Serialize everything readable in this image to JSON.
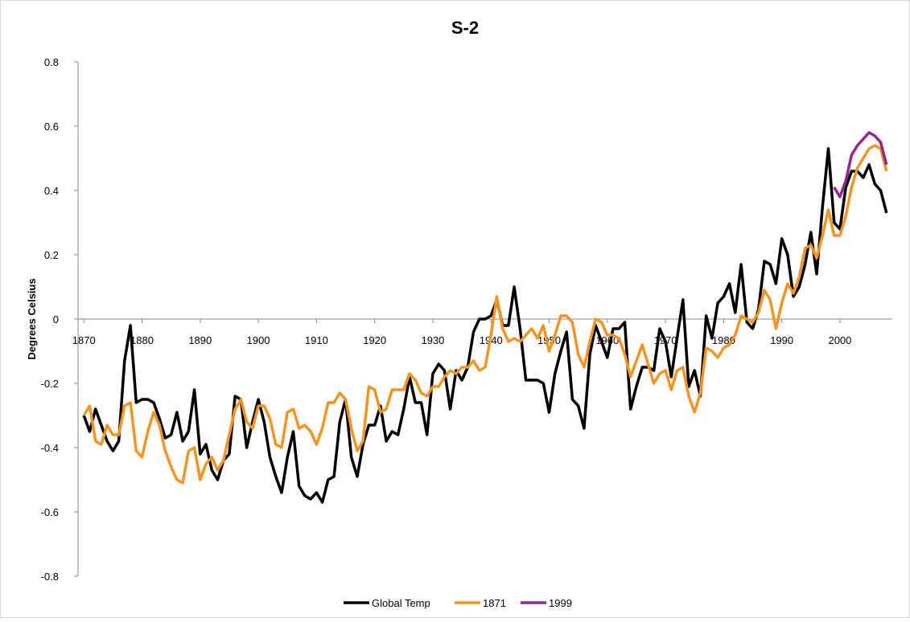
{
  "chart_data": {
    "type": "line",
    "title": "S-2",
    "y_label": "Degrees Celsius",
    "x": [
      1870,
      1871,
      1872,
      1873,
      1874,
      1875,
      1876,
      1877,
      1878,
      1879,
      1880,
      1881,
      1882,
      1883,
      1884,
      1885,
      1886,
      1887,
      1888,
      1889,
      1890,
      1891,
      1892,
      1893,
      1894,
      1895,
      1896,
      1897,
      1898,
      1899,
      1900,
      1901,
      1902,
      1903,
      1904,
      1905,
      1906,
      1907,
      1908,
      1909,
      1910,
      1911,
      1912,
      1913,
      1914,
      1915,
      1916,
      1917,
      1918,
      1919,
      1920,
      1921,
      1922,
      1923,
      1924,
      1925,
      1926,
      1927,
      1928,
      1929,
      1930,
      1931,
      1932,
      1933,
      1934,
      1935,
      1936,
      1937,
      1938,
      1939,
      1940,
      1941,
      1942,
      1943,
      1944,
      1945,
      1946,
      1947,
      1948,
      1949,
      1950,
      1951,
      1952,
      1953,
      1954,
      1955,
      1956,
      1957,
      1958,
      1959,
      1960,
      1961,
      1962,
      1963,
      1964,
      1965,
      1966,
      1967,
      1968,
      1969,
      1970,
      1971,
      1972,
      1973,
      1974,
      1975,
      1976,
      1977,
      1978,
      1979,
      1980,
      1981,
      1982,
      1983,
      1984,
      1985,
      1986,
      1987,
      1988,
      1989,
      1990,
      1991,
      1992,
      1993,
      1994,
      1995,
      1996,
      1997,
      1998,
      1999,
      2000,
      2001,
      2002,
      2003,
      2004,
      2005,
      2006,
      2007,
      2008
    ],
    "series": [
      {
        "name": "Global Temp",
        "color": "#000000",
        "values": [
          -0.3,
          -0.35,
          -0.28,
          -0.33,
          -0.38,
          -0.41,
          -0.38,
          -0.13,
          -0.02,
          -0.26,
          -0.25,
          -0.25,
          -0.26,
          -0.31,
          -0.37,
          -0.36,
          -0.29,
          -0.38,
          -0.35,
          -0.22,
          -0.42,
          -0.39,
          -0.47,
          -0.5,
          -0.44,
          -0.42,
          -0.24,
          -0.25,
          -0.4,
          -0.32,
          -0.25,
          -0.32,
          -0.43,
          -0.49,
          -0.54,
          -0.43,
          -0.35,
          -0.52,
          -0.55,
          -0.56,
          -0.54,
          -0.57,
          -0.5,
          -0.49,
          -0.32,
          -0.25,
          -0.43,
          -0.49,
          -0.39,
          -0.33,
          -0.33,
          -0.27,
          -0.38,
          -0.35,
          -0.36,
          -0.28,
          -0.18,
          -0.26,
          -0.26,
          -0.36,
          -0.17,
          -0.14,
          -0.16,
          -0.28,
          -0.16,
          -0.19,
          -0.15,
          -0.04,
          0.0,
          0.0,
          0.01,
          0.06,
          -0.02,
          -0.02,
          0.1,
          -0.03,
          -0.19,
          -0.19,
          -0.19,
          -0.2,
          -0.29,
          -0.17,
          -0.1,
          -0.04,
          -0.25,
          -0.27,
          -0.34,
          -0.11,
          -0.02,
          -0.07,
          -0.12,
          -0.03,
          -0.03,
          -0.01,
          -0.28,
          -0.21,
          -0.15,
          -0.15,
          -0.16,
          -0.03,
          -0.07,
          -0.18,
          -0.06,
          0.06,
          -0.21,
          -0.16,
          -0.24,
          0.01,
          -0.06,
          0.05,
          0.07,
          0.11,
          0.02,
          0.17,
          -0.01,
          -0.03,
          0.03,
          0.18,
          0.17,
          0.11,
          0.25,
          0.2,
          0.07,
          0.1,
          0.17,
          0.27,
          0.14,
          0.35,
          0.53,
          0.3,
          0.28,
          0.41,
          0.46,
          0.46,
          0.44,
          0.48,
          0.42,
          0.4,
          0.33
        ]
      },
      {
        "name": "1871",
        "color": "#f7941d",
        "values": [
          -0.3,
          -0.27,
          -0.38,
          -0.39,
          -0.33,
          -0.36,
          -0.36,
          -0.27,
          -0.26,
          -0.41,
          -0.43,
          -0.35,
          -0.29,
          -0.33,
          -0.41,
          -0.46,
          -0.5,
          -0.51,
          -0.41,
          -0.4,
          -0.5,
          -0.45,
          -0.43,
          -0.47,
          -0.44,
          -0.36,
          -0.28,
          -0.25,
          -0.32,
          -0.34,
          -0.27,
          -0.27,
          -0.31,
          -0.39,
          -0.4,
          -0.29,
          -0.28,
          -0.34,
          -0.33,
          -0.35,
          -0.39,
          -0.34,
          -0.26,
          -0.26,
          -0.23,
          -0.25,
          -0.34,
          -0.41,
          -0.38,
          -0.21,
          -0.22,
          -0.29,
          -0.28,
          -0.22,
          -0.22,
          -0.22,
          -0.17,
          -0.19,
          -0.23,
          -0.24,
          -0.21,
          -0.21,
          -0.18,
          -0.16,
          -0.17,
          -0.15,
          -0.15,
          -0.13,
          -0.16,
          -0.15,
          -0.05,
          0.07,
          -0.03,
          -0.07,
          -0.06,
          -0.07,
          -0.05,
          -0.03,
          -0.06,
          -0.02,
          -0.1,
          -0.05,
          0.01,
          0.01,
          -0.01,
          -0.11,
          -0.15,
          -0.07,
          0.0,
          -0.01,
          -0.05,
          -0.05,
          -0.06,
          -0.11,
          -0.18,
          -0.13,
          -0.08,
          -0.14,
          -0.2,
          -0.17,
          -0.16,
          -0.22,
          -0.16,
          -0.15,
          -0.24,
          -0.29,
          -0.23,
          -0.09,
          -0.1,
          -0.12,
          -0.09,
          -0.08,
          -0.05,
          0.01,
          0.0,
          -0.01,
          0.02,
          0.09,
          0.06,
          -0.03,
          0.05,
          0.11,
          0.08,
          0.13,
          0.22,
          0.23,
          0.19,
          0.26,
          0.34,
          0.26,
          0.26,
          0.32,
          0.41,
          0.47,
          0.5,
          0.53,
          0.54,
          0.53,
          0.46
        ]
      },
      {
        "name": "1999",
        "color": "#93278f",
        "x": [
          1999,
          2000,
          2001,
          2002,
          2003,
          2004,
          2005,
          2006,
          2007,
          2008
        ],
        "values": [
          0.41,
          0.38,
          0.43,
          0.51,
          0.54,
          0.56,
          0.58,
          0.57,
          0.55,
          0.48
        ]
      }
    ],
    "xlim": [
      1869,
      2009
    ],
    "xticks": [
      1870,
      1880,
      1890,
      1900,
      1910,
      1920,
      1930,
      1940,
      1950,
      1960,
      1970,
      1980,
      1990,
      2000
    ],
    "ylim": [
      -0.8,
      0.8
    ],
    "yticks": [
      -0.8,
      -0.6,
      -0.4,
      -0.2,
      0,
      0.2,
      0.4,
      0.6,
      0.8
    ],
    "grid": false,
    "legend": "bottom"
  }
}
